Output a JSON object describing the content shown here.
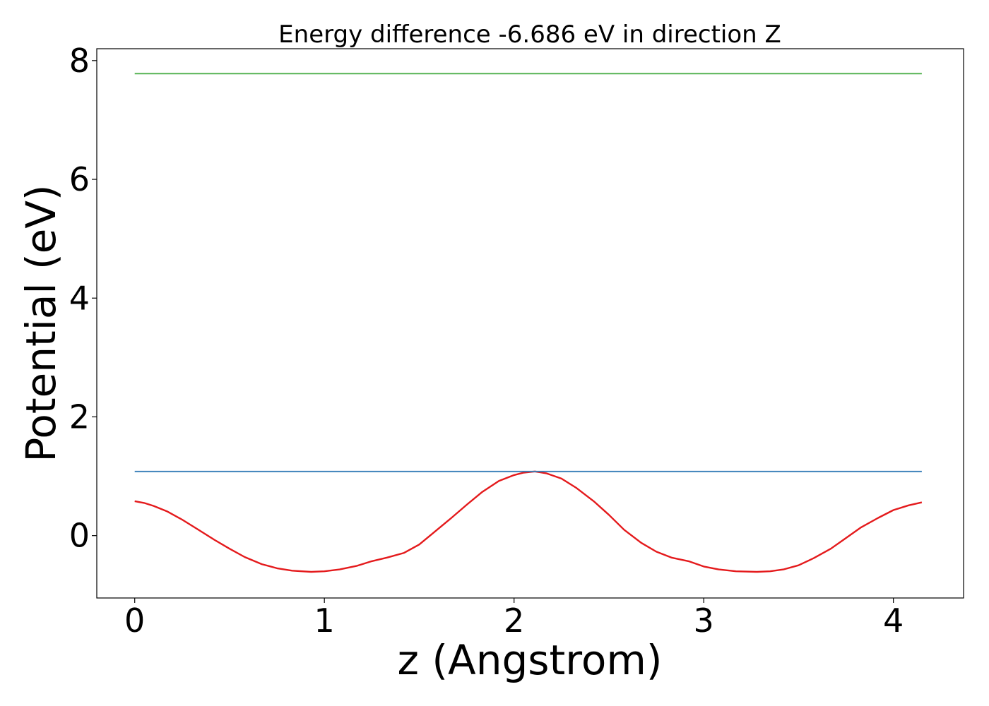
{
  "chart_data": {
    "type": "line",
    "title": "Energy difference -6.686 eV in direction Z",
    "xlabel": "z (Angstrom)",
    "ylabel": "Potential (eV)",
    "xlim": [
      -0.2,
      4.37
    ],
    "ylim": [
      -1.05,
      8.2
    ],
    "xticks": [
      0,
      1,
      2,
      3,
      4
    ],
    "xtick_labels": [
      "0",
      "1",
      "2",
      "3",
      "4"
    ],
    "yticks": [
      0,
      2,
      4,
      6,
      8
    ],
    "ytick_labels": [
      "0",
      "2",
      "4",
      "6",
      "8"
    ],
    "grid": false,
    "series": [
      {
        "color": "#e41a1c",
        "x": [
          0,
          0.05,
          0.1,
          0.17,
          0.25,
          0.33,
          0.42,
          0.5,
          0.58,
          0.67,
          0.75,
          0.83,
          0.93,
          1.0,
          1.08,
          1.17,
          1.25,
          1.33,
          1.42,
          1.5,
          1.58,
          1.67,
          1.75,
          1.83,
          1.92,
          2.0,
          2.05,
          2.11,
          2.17,
          2.25,
          2.33,
          2.42,
          2.5,
          2.58,
          2.67,
          2.75,
          2.83,
          2.92,
          3.0,
          3.08,
          3.17,
          3.28,
          3.35,
          3.42,
          3.5,
          3.58,
          3.67,
          3.75,
          3.83,
          3.92,
          4.0,
          4.08,
          4.15
        ],
        "y": [
          0.58,
          0.55,
          0.5,
          0.41,
          0.27,
          0.11,
          -0.07,
          -0.22,
          -0.36,
          -0.48,
          -0.55,
          -0.59,
          -0.61,
          -0.6,
          -0.57,
          -0.51,
          -0.43,
          -0.37,
          -0.29,
          -0.15,
          0.06,
          0.3,
          0.52,
          0.73,
          0.92,
          1.02,
          1.06,
          1.08,
          1.05,
          0.96,
          0.8,
          0.58,
          0.35,
          0.1,
          -0.12,
          -0.27,
          -0.37,
          -0.43,
          -0.52,
          -0.57,
          -0.6,
          -0.61,
          -0.6,
          -0.57,
          -0.5,
          -0.38,
          -0.22,
          -0.04,
          0.14,
          0.3,
          0.43,
          0.51,
          0.56
        ]
      },
      {
        "color": "#377eb8",
        "x": [
          0,
          4.15
        ],
        "y": [
          1.08,
          1.08
        ]
      },
      {
        "color": "#4daf4a",
        "x": [
          0,
          4.15
        ],
        "y": [
          7.78,
          7.78
        ]
      }
    ]
  }
}
